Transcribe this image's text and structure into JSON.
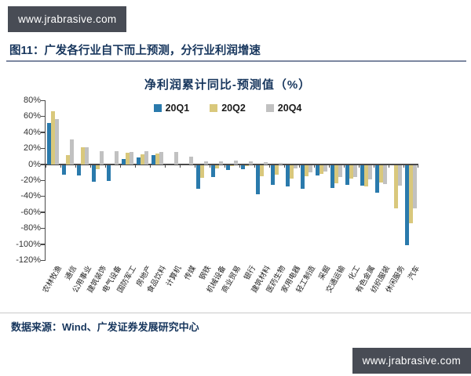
{
  "badge_top": {
    "text": "www.jrabrasive.com"
  },
  "badge_bottom": {
    "text": "www.jrabrasive.com"
  },
  "figure_caption": "图11：广发各行业自下而上预测，分行业利润增速",
  "footer": {
    "source_text": "数据来源：Wind、广发证券发展研究中心"
  },
  "colors": {
    "accent_navy": "#17365D",
    "badge_bg": "#484C55",
    "axis": "#4a4a4a"
  },
  "chart_data": {
    "type": "bar",
    "title": "净利润累计同比-预测值（%）",
    "xlabel": "",
    "ylabel": "",
    "ylim": [
      -120,
      80
    ],
    "ytick_step": 20,
    "yticks": [
      "80%",
      "60%",
      "40%",
      "20%",
      "0%",
      "-20%",
      "-40%",
      "-60%",
      "-80%",
      "-100%",
      "-120%"
    ],
    "grid": false,
    "legend_position": "top",
    "categories": [
      "农林牧渔",
      "通信",
      "公用事业",
      "建筑装饰",
      "电气设备",
      "国防军工",
      "房地产",
      "食品饮料",
      "计算机",
      "传媒",
      "钢铁",
      "机械设备",
      "商业贸易",
      "银行",
      "建筑材料",
      "医药生物",
      "家用电器",
      "轻工制造",
      "采掘",
      "交通运输",
      "化工",
      "有色金属",
      "纺织服装",
      "休闲服务",
      "汽车"
    ],
    "series": [
      {
        "name": "20Q1",
        "color": "#2A7AAC",
        "values": [
          52,
          -12,
          -13,
          -21,
          -20,
          6,
          8,
          11,
          0,
          0,
          -30,
          -15,
          -6,
          -5,
          -37,
          -25,
          -27,
          -30,
          -13,
          -29,
          -25,
          -26,
          -35,
          0,
          -100
        ]
      },
      {
        "name": "20Q2",
        "color": "#D9C87C",
        "values": [
          66,
          11,
          21,
          -5,
          0,
          14,
          12,
          13,
          0,
          0,
          -16,
          -4,
          -1,
          -1,
          -14,
          -12,
          -17,
          -14,
          -11,
          -23,
          -17,
          -27,
          -22,
          -54,
          -73
        ]
      },
      {
        "name": "20Q4",
        "color": "#C1C1C1",
        "values": [
          56,
          31,
          21,
          16,
          16,
          15,
          16,
          15,
          15,
          9,
          4,
          4,
          5,
          4,
          3,
          2,
          -4,
          -9,
          -8,
          -15,
          -15,
          -18,
          -24,
          -26,
          -54
        ]
      }
    ]
  }
}
